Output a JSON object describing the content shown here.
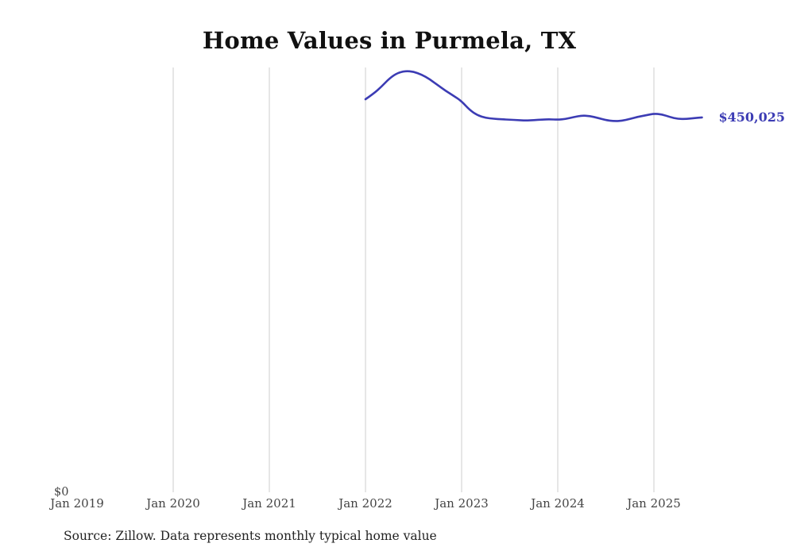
{
  "title": "Home Values in Purmela, TX",
  "source_note": "Source: Zillow. Data represents monthly typical home value",
  "end_label": "$450,025",
  "y_zero_label": "$0",
  "colors": {
    "line": "#3c3cb4",
    "grid": "#cccccc",
    "tick_label": "#444444",
    "title": "#111111",
    "source": "#222222"
  },
  "chart_data": {
    "type": "line",
    "title": "Home Values in Purmela, TX",
    "xlabel": "",
    "ylabel": "",
    "ylim": [
      0,
      510000
    ],
    "grid": "vertical",
    "legend": "none",
    "x_tick_labels": [
      "Jan 2019",
      "Jan 2020",
      "Jan 2021",
      "Jan 2022",
      "Jan 2023",
      "Jan 2024",
      "Jan 2025"
    ],
    "gridline_ticks": [
      "Jan 2020",
      "Jan 2021",
      "Jan 2022",
      "Jan 2023",
      "Jan 2024",
      "Jan 2025"
    ],
    "end_value": 450025,
    "series": [
      {
        "name": "Monthly typical home value",
        "x": [
          "2022-01",
          "2022-02",
          "2022-03",
          "2022-04",
          "2022-05",
          "2022-06",
          "2022-07",
          "2022-08",
          "2022-09",
          "2022-10",
          "2022-11",
          "2022-12",
          "2023-01",
          "2023-02",
          "2023-03",
          "2023-04",
          "2023-05",
          "2023-06",
          "2023-07",
          "2023-08",
          "2023-09",
          "2023-10",
          "2023-11",
          "2023-12",
          "2024-01",
          "2024-02",
          "2024-03",
          "2024-04",
          "2024-05",
          "2024-06",
          "2024-07",
          "2024-08",
          "2024-09",
          "2024-10",
          "2024-11",
          "2024-12",
          "2025-01",
          "2025-02",
          "2025-03",
          "2025-04",
          "2025-05",
          "2025-06",
          "2025-07"
        ],
        "values": [
          471900,
          478500,
          487000,
          497000,
          503500,
          505900,
          505000,
          501500,
          496000,
          489000,
          482000,
          476000,
          469500,
          459000,
          452500,
          449500,
          448500,
          447800,
          447300,
          446800,
          446300,
          446800,
          447500,
          447800,
          447300,
          448200,
          450500,
          452300,
          451800,
          449500,
          446800,
          445600,
          445900,
          448200,
          450800,
          452600,
          454500,
          453800,
          450500,
          448300,
          448100,
          449300,
          450025
        ]
      }
    ]
  }
}
